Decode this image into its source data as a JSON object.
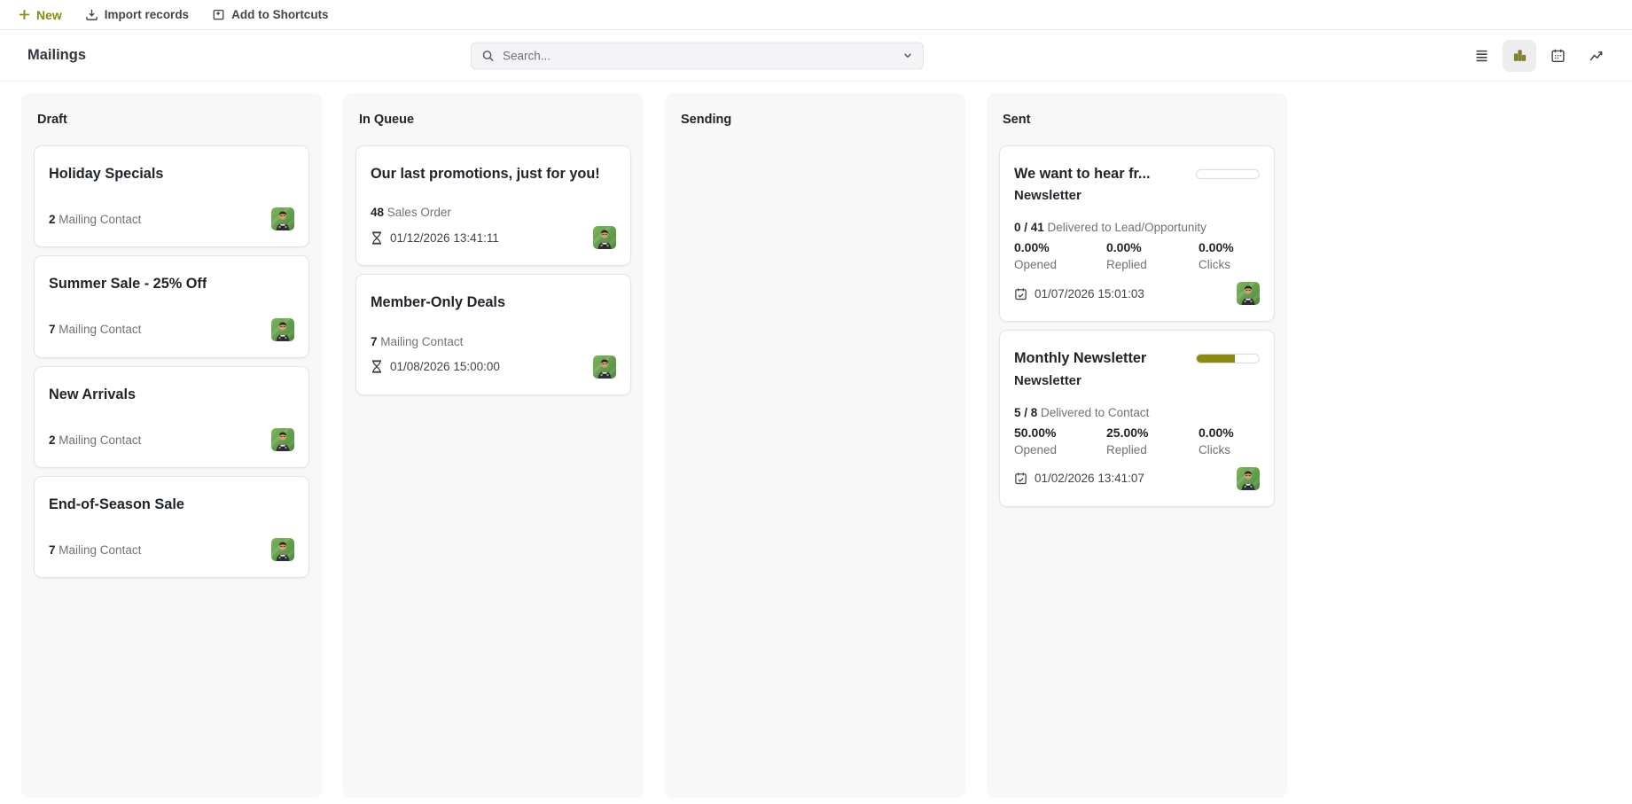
{
  "theme": {
    "accent_color": "#8a8a0f",
    "avatar_background_green": "#5f9a47",
    "column_background": "#f8f8f9"
  },
  "topbar": {
    "new_label": "New",
    "import_label": "Import records",
    "shortcuts_label": "Add to Shortcuts"
  },
  "panel": {
    "title": "Mailings",
    "search_placeholder": "Search...",
    "view_switcher": [
      {
        "name": "list",
        "active": false
      },
      {
        "name": "kanban",
        "active": true
      },
      {
        "name": "calendar",
        "active": false
      },
      {
        "name": "graph",
        "active": false
      }
    ]
  },
  "board": {
    "columns": [
      {
        "name": "Draft",
        "cards": [
          {
            "type": "draft",
            "title": "Holiday Specials",
            "count": "2",
            "count_label": "Mailing Contact"
          },
          {
            "type": "draft",
            "title": "Summer Sale - 25% Off",
            "count": "7",
            "count_label": "Mailing Contact"
          },
          {
            "type": "draft",
            "title": "New Arrivals",
            "count": "2",
            "count_label": "Mailing Contact"
          },
          {
            "type": "draft",
            "title": "End-of-Season Sale",
            "count": "7",
            "count_label": "Mailing Contact"
          }
        ]
      },
      {
        "name": "In Queue",
        "cards": [
          {
            "type": "queue",
            "title": "Our last promotions, just for you!",
            "count": "48",
            "count_label": "Sales Order",
            "scheduled_date": "01/12/2026 13:41:11"
          },
          {
            "type": "queue",
            "title": "Member-Only Deals",
            "count": "7",
            "count_label": "Mailing Contact",
            "scheduled_date": "01/08/2026 15:00:00"
          }
        ]
      },
      {
        "name": "Sending",
        "cards": []
      },
      {
        "name": "Sent",
        "cards": [
          {
            "type": "sent",
            "title": "We want to hear fr...",
            "subtitle": "Newsletter",
            "progress_percent": 0,
            "delivered_ratio": "0 / 41",
            "delivered_label": "Delivered to Lead/Opportunity",
            "stats": [
              {
                "value": "0.00%",
                "label": "Opened"
              },
              {
                "value": "0.00%",
                "label": "Replied"
              },
              {
                "value": "0.00%",
                "label": "Clicks"
              }
            ],
            "sent_date": "01/07/2026 15:01:03"
          },
          {
            "type": "sent",
            "title": "Monthly Newsletter",
            "subtitle": "Newsletter",
            "progress_percent": 62,
            "delivered_ratio": "5 / 8",
            "delivered_label": "Delivered to Contact",
            "stats": [
              {
                "value": "50.00%",
                "label": "Opened"
              },
              {
                "value": "25.00%",
                "label": "Replied"
              },
              {
                "value": "0.00%",
                "label": "Clicks"
              }
            ],
            "sent_date": "01/02/2026 13:41:07"
          }
        ]
      }
    ]
  }
}
